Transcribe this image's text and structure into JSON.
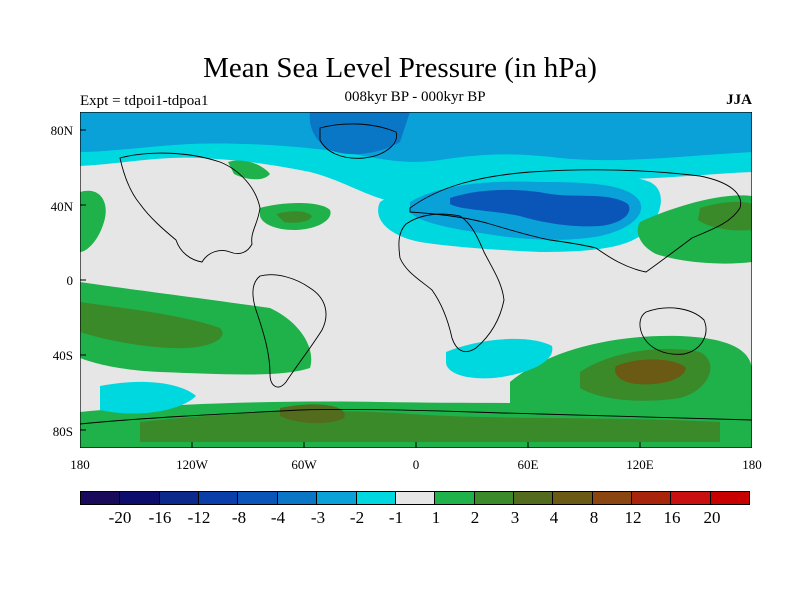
{
  "title": "Mean Sea Level Pressure (in hPa)",
  "experiment": "Expt = tdpoi1-tdpoa1",
  "period": "008kyr BP - 000kyr BP",
  "season": "JJA",
  "lat_labels": [
    "80N",
    "40N",
    "0",
    "40S",
    "80S"
  ],
  "lon_labels": [
    "180",
    "120W",
    "60W",
    "0",
    "60E",
    "120E",
    "180"
  ],
  "colorbar": {
    "labels": [
      "-20",
      "-16",
      "-12",
      "-8",
      "-4",
      "-3",
      "-2",
      "-1",
      "1",
      "2",
      "3",
      "4",
      "8",
      "12",
      "16",
      "20"
    ],
    "colors": [
      "#1a0a5c",
      "#0d0d6e",
      "#0c2a8c",
      "#0a3ea8",
      "#0a56b8",
      "#0a77c6",
      "#0aa0d8",
      "#00d8e0",
      "#e6e6e6",
      "#1fb14a",
      "#3a8a2a",
      "#536b1c",
      "#6b5a14",
      "#8a4510",
      "#a8240a",
      "#c81010",
      "#c80000"
    ]
  },
  "colors": {
    "background": "#e6e6e6",
    "neg_light": "#00d8e0",
    "neg_mid": "#0aa0d8",
    "neg_strong": "#0a56b8",
    "pos_light": "#1fb14a",
    "pos_mid": "#3a8a2a",
    "pos_strong": "#6b5a14"
  }
}
